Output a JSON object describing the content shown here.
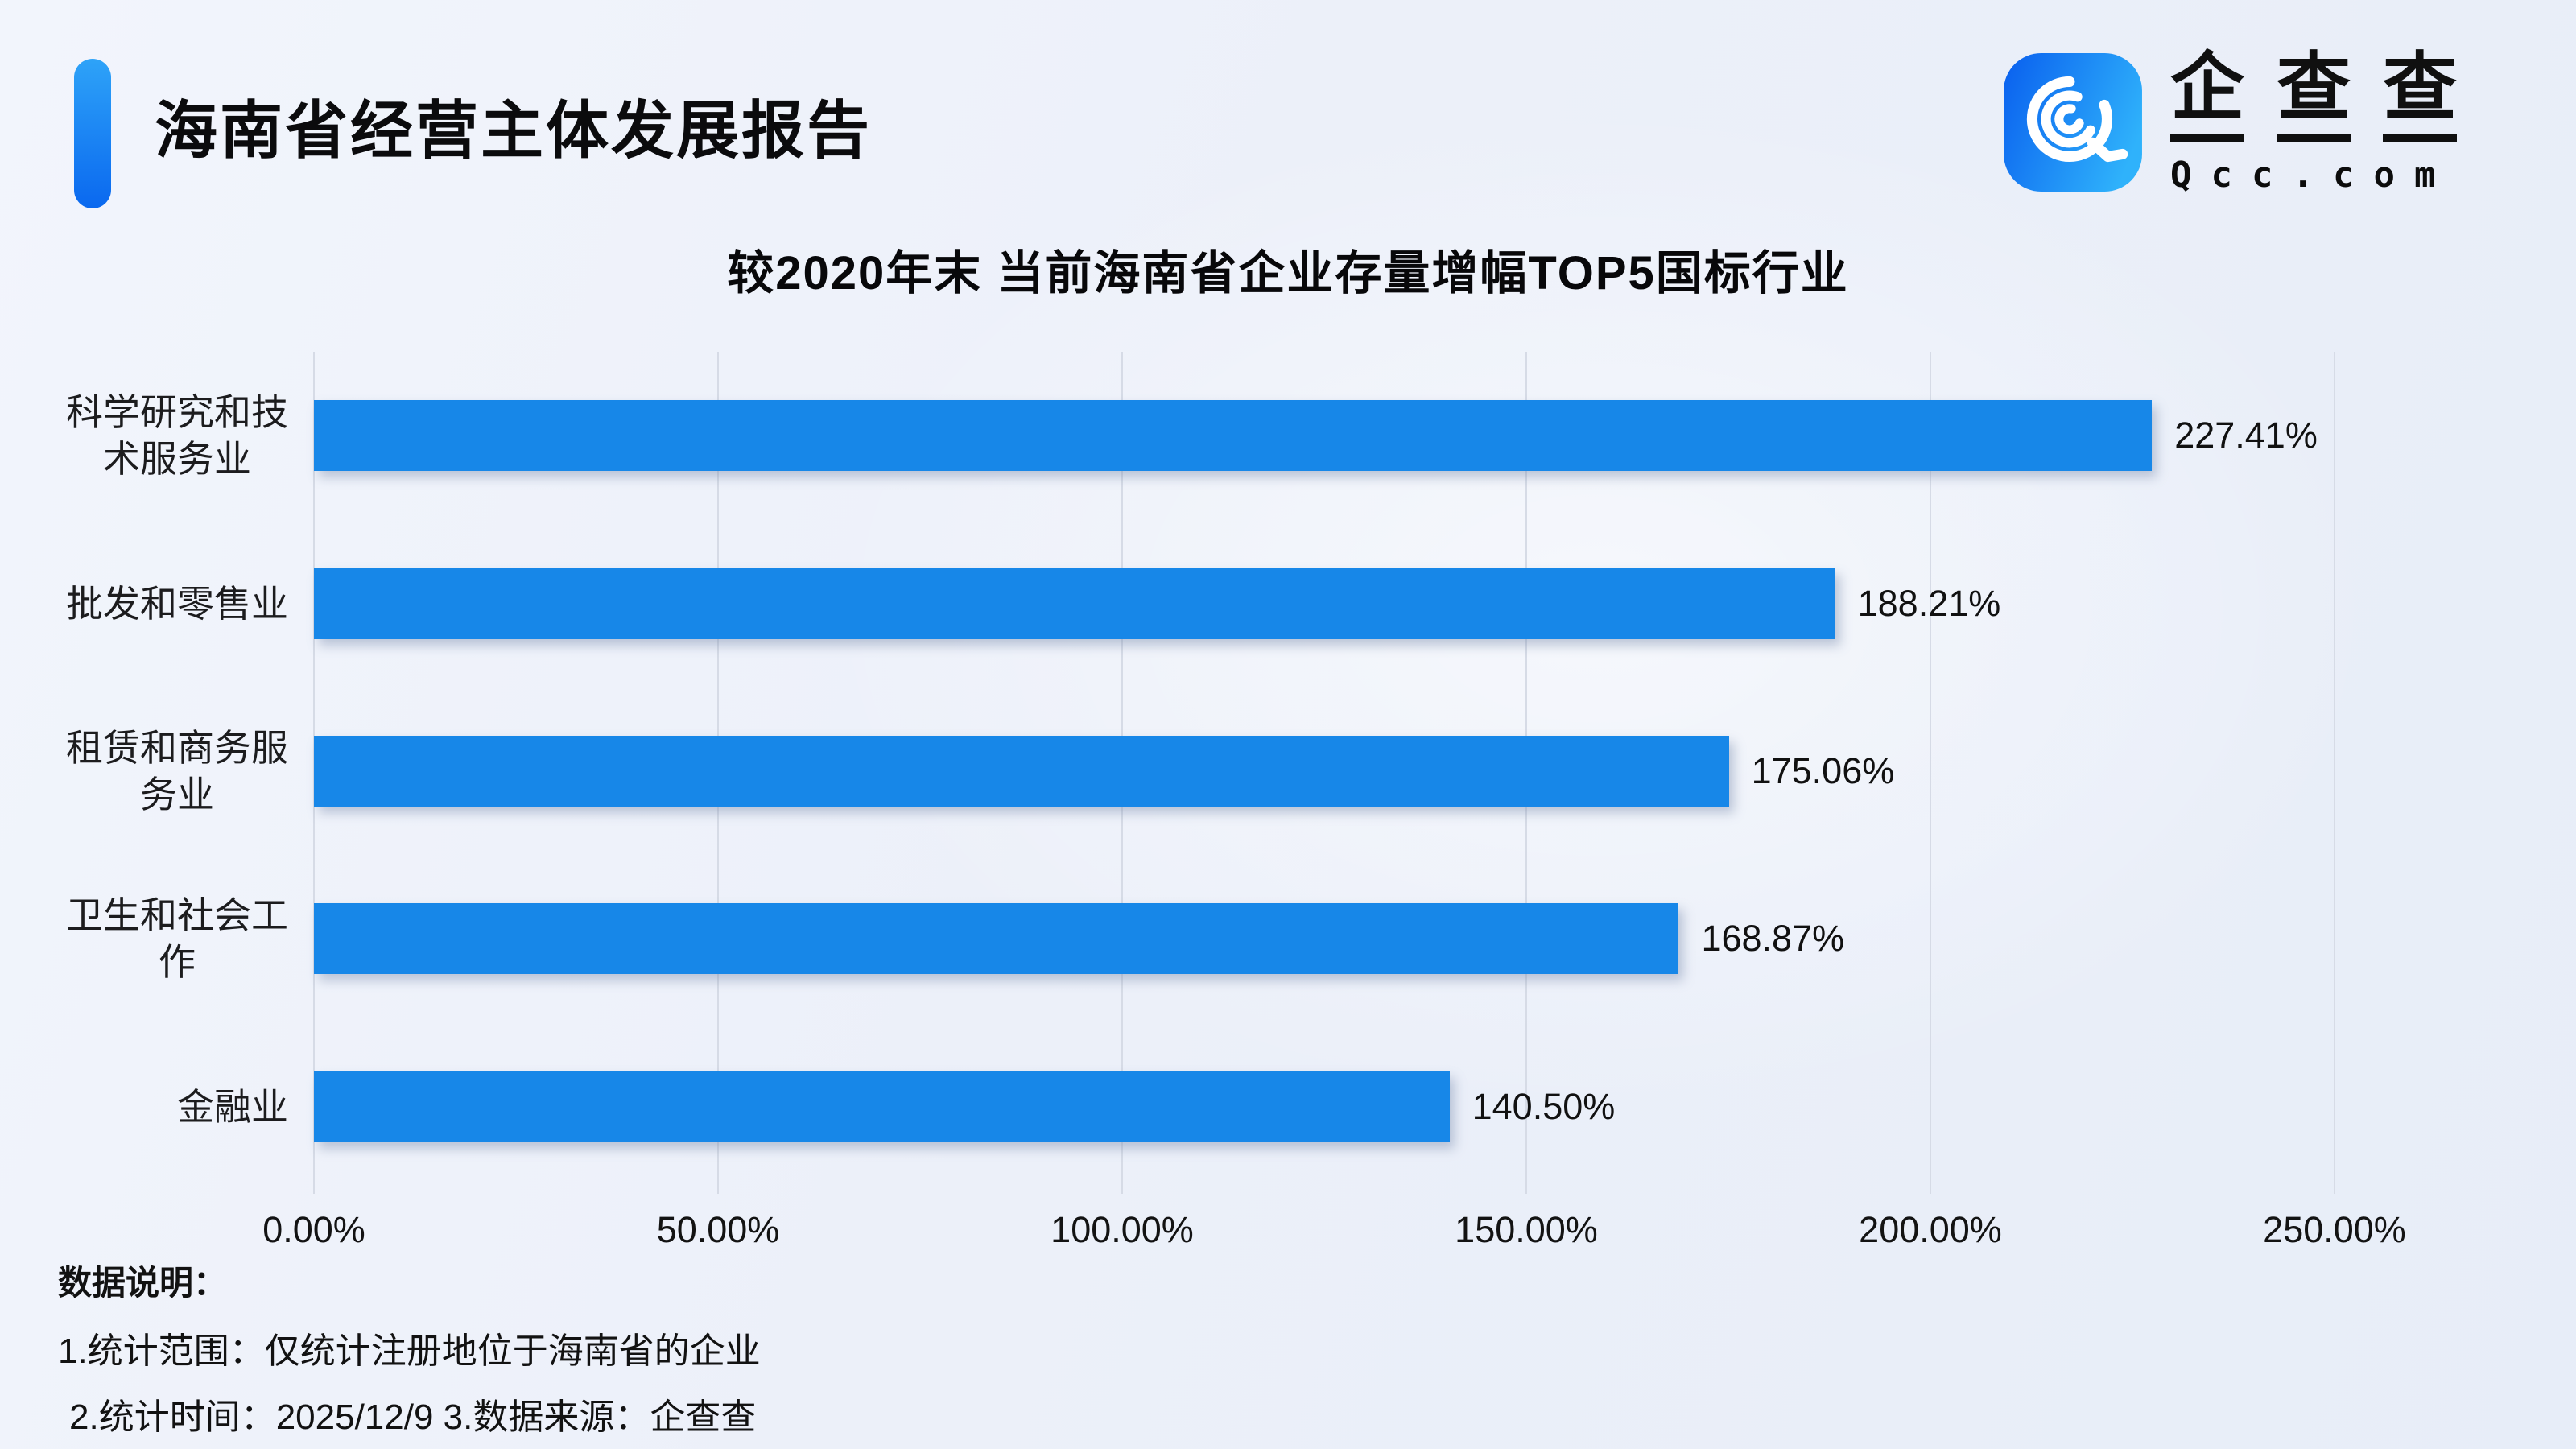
{
  "header": {
    "title": "海南省经营主体发展报告",
    "logo": {
      "brand": "企查查",
      "url": "Qcc.com"
    }
  },
  "chart_data": {
    "type": "bar",
    "orientation": "horizontal",
    "title": "较2020年末 当前海南省企业存量增幅TOP5国标行业",
    "categories": [
      "科学研究和技术服务业",
      "批发和零售业",
      "租赁和商务服务业",
      "卫生和社会工作",
      "金融业"
    ],
    "category_lines": [
      [
        "科学研究和技",
        "术服务业"
      ],
      [
        "批发和零售业"
      ],
      [
        "租赁和商务服",
        "务业"
      ],
      [
        "卫生和社会工",
        "作"
      ],
      [
        "金融业"
      ]
    ],
    "values": [
      227.41,
      188.21,
      175.06,
      168.87,
      140.5
    ],
    "value_labels": [
      "227.41%",
      "188.21%",
      "175.06%",
      "168.87%",
      "140.50%"
    ],
    "xlim": [
      0,
      250
    ],
    "x_tick_values": [
      0,
      50,
      100,
      150,
      200,
      250
    ],
    "x_tick_labels": [
      "0.00%",
      "50.00%",
      "100.00%",
      "150.00%",
      "200.00%",
      "250.00%"
    ],
    "grid": "vertical",
    "legend": "none"
  },
  "footer": {
    "heading": "数据说明：",
    "notes": [
      "1.统计范围：仅统计注册地位于海南省的企业",
      "2.统计时间：2025/12/9  3.数据来源：企查查"
    ]
  },
  "palette": {
    "bar_color": "#1787e8",
    "accent_light": "#2ea3f8",
    "accent_dark": "#0a68ef",
    "logo_gradient_start": "#0b63ef",
    "logo_gradient_end": "#2fb2fb",
    "grid_color": "#d6dbe6"
  }
}
